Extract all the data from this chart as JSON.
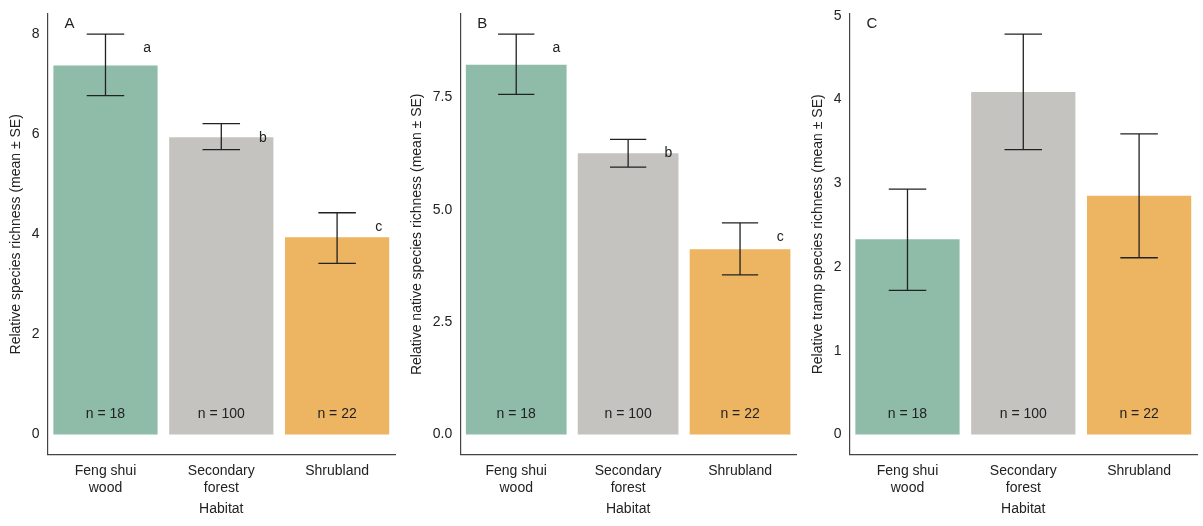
{
  "chart_data": [
    {
      "type": "bar",
      "title": "A",
      "xlabel": "Habitat",
      "ylabel": "Relative species richness (mean ± SE)",
      "categories": [
        "Feng shui wood",
        "Secondary forest",
        "Shrubland"
      ],
      "values": [
        7.37,
        5.94,
        3.94
      ],
      "colors": [
        "#8fbca8",
        "#c4c3bf",
        "#edb461"
      ],
      "errors": [
        [
          6.77,
          8.0
        ],
        [
          5.69,
          6.21
        ],
        [
          3.42,
          4.43
        ]
      ],
      "ylim": [
        -0.4,
        8.4
      ],
      "yticks": [
        0,
        2,
        4,
        6,
        8
      ],
      "grid": false,
      "legend": false,
      "annotations": [
        "a",
        "b",
        "c",
        "n = 18",
        "n = 100",
        "n = 22"
      ]
    },
    {
      "type": "bar",
      "title": "B",
      "xlabel": "Habitat",
      "ylabel": "Relative native species richness (mean ± SE)",
      "categories": [
        "Feng shui wood",
        "Secondary forest",
        "Shrubland"
      ],
      "values": [
        8.23,
        6.26,
        4.12
      ],
      "colors": [
        "#8fbca8",
        "#c4c3bf",
        "#edb461"
      ],
      "errors": [
        [
          7.57,
          8.91
        ],
        [
          5.95,
          6.57
        ],
        [
          3.55,
          4.71
        ]
      ],
      "ylim": [
        -0.45,
        9.36
      ],
      "yticks": [
        {
          "value": 0,
          "label": "0.0"
        },
        2.5,
        {
          "value": 5,
          "label": "5.0"
        },
        7.5
      ],
      "grid": false,
      "legend": false,
      "annotations": [
        "a",
        "b",
        "c",
        "n = 18",
        "n = 100",
        "n = 22"
      ]
    },
    {
      "type": "bar",
      "title": "C",
      "xlabel": "Habitat",
      "ylabel": "Relative tramp species richness (mean ± SE)",
      "categories": [
        "Feng shui wood",
        "Secondary forest",
        "Shrubland"
      ],
      "values": [
        2.33,
        4.09,
        2.85
      ],
      "colors": [
        "#8fbca8",
        "#c4c3bf",
        "#edb461"
      ],
      "errors": [
        [
          1.72,
          2.93
        ],
        [
          3.4,
          4.78
        ],
        [
          2.11,
          3.59
        ]
      ],
      "ylim": [
        -0.24,
        5.02
      ],
      "yticks": [
        0,
        1,
        2,
        3,
        4,
        5
      ],
      "grid": false,
      "legend": false,
      "annotations": [
        "n = 18",
        "n = 100",
        "n = 22"
      ]
    }
  ]
}
